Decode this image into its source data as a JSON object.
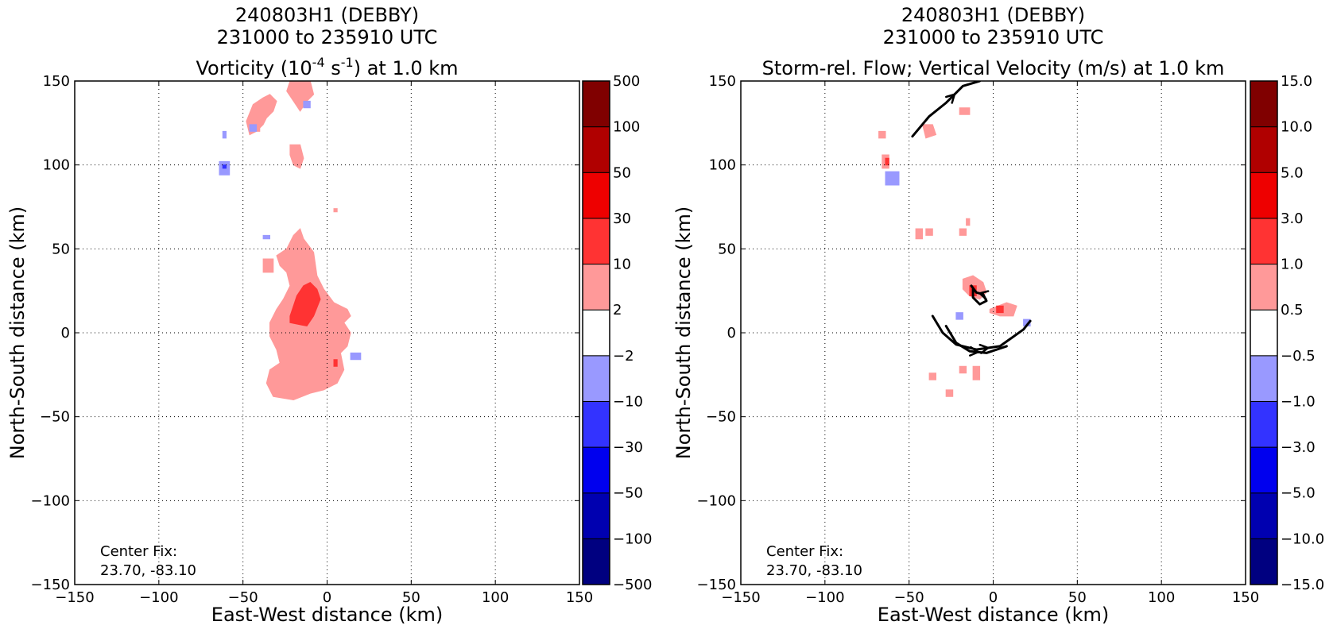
{
  "chart_data": [
    {
      "type": "heatmap",
      "title_lines": [
        "240803H1 (DEBBY)",
        "231000 to 235910 UTC"
      ],
      "title_variable": {
        "pre": "Vorticity (10",
        "sup1": "-4",
        "mid": " s",
        "sup2": "-1",
        "post": ") at 1.0 km"
      },
      "xlabel": "East-West distance (km)",
      "ylabel": "North-South distance (km)",
      "xlim": [
        -150,
        150
      ],
      "ylim": [
        -150,
        150
      ],
      "xticks": [
        -150,
        -100,
        -50,
        0,
        50,
        100,
        150
      ],
      "yticks": [
        -150,
        -100,
        -50,
        0,
        50,
        100,
        150
      ],
      "grid": true,
      "annotation": [
        "Center Fix:",
        "23.70, -83.10"
      ],
      "colorbar": {
        "levels": [
          "-500",
          "-100",
          "-50",
          "-30",
          "-10",
          "−2",
          "2",
          "10",
          "30",
          "50",
          "100",
          "500"
        ],
        "colors": [
          "#000080",
          "#0000b0",
          "#0000ee",
          "#3333ff",
          "#9999ff",
          "#ffffff",
          "#ff9999",
          "#ff3333",
          "#ee0000",
          "#b00000",
          "#800000"
        ]
      },
      "regions": [
        {
          "cls": 6,
          "poly": [
            [
              -32,
              -38
            ],
            [
              -20,
              -40
            ],
            [
              -10,
              -36
            ],
            [
              -2,
              -34
            ],
            [
              6,
              -30
            ],
            [
              10,
              -22
            ],
            [
              8,
              -12
            ],
            [
              12,
              -8
            ],
            [
              14,
              0
            ],
            [
              10,
              6
            ],
            [
              14,
              10
            ],
            [
              12,
              14
            ],
            [
              4,
              18
            ],
            [
              -2,
              26
            ],
            [
              -6,
              34
            ],
            [
              -8,
              48
            ],
            [
              -14,
              56
            ],
            [
              -16,
              62
            ],
            [
              -20,
              58
            ],
            [
              -24,
              50
            ],
            [
              -30,
              46
            ],
            [
              -28,
              40
            ],
            [
              -24,
              36
            ],
            [
              -22,
              28
            ],
            [
              -26,
              20
            ],
            [
              -30,
              14
            ],
            [
              -34,
              6
            ],
            [
              -34,
              -2
            ],
            [
              -30,
              -10
            ],
            [
              -28,
              -18
            ],
            [
              -34,
              -22
            ],
            [
              -36,
              -30
            ]
          ]
        },
        {
          "cls": 6,
          "poly": [
            [
              -38,
              44
            ],
            [
              -32,
              44
            ],
            [
              -32,
              36
            ],
            [
              -38,
              36
            ]
          ]
        },
        {
          "cls": 6,
          "poly": [
            [
              -48,
              126
            ],
            [
              -44,
              136
            ],
            [
              -38,
              140
            ],
            [
              -34,
              142
            ],
            [
              -30,
              138
            ],
            [
              -32,
              132
            ],
            [
              -36,
              128
            ],
            [
              -38,
              124
            ],
            [
              -42,
              120
            ],
            [
              -46,
              118
            ]
          ]
        },
        {
          "cls": 6,
          "poly": [
            [
              -22,
              150
            ],
            [
              -10,
              150
            ],
            [
              -8,
              142
            ],
            [
              -12,
              138
            ],
            [
              -16,
              132
            ],
            [
              -20,
              138
            ],
            [
              -24,
              144
            ]
          ]
        },
        {
          "cls": 6,
          "poly": [
            [
              -22,
              112
            ],
            [
              -16,
              112
            ],
            [
              -14,
              104
            ],
            [
              -16,
              98
            ],
            [
              -20,
              100
            ],
            [
              -22,
              106
            ]
          ]
        },
        {
          "cls": 6,
          "poly": [
            [
              4,
              74
            ],
            [
              6,
              74
            ],
            [
              6,
              72
            ],
            [
              4,
              72
            ]
          ]
        },
        {
          "cls": 6,
          "poly": [
            [
              -42,
              124
            ],
            [
              -40,
              124
            ],
            [
              -40,
              120
            ],
            [
              -42,
              120
            ]
          ]
        },
        {
          "cls": 7,
          "poly": [
            [
              -22,
              6
            ],
            [
              -12,
              4
            ],
            [
              -8,
              10
            ],
            [
              -4,
              20
            ],
            [
              -6,
              26
            ],
            [
              -10,
              30
            ],
            [
              -14,
              28
            ],
            [
              -18,
              22
            ],
            [
              -20,
              16
            ],
            [
              -22,
              10
            ]
          ]
        },
        {
          "cls": 7,
          "poly": [
            [
              4,
              -16
            ],
            [
              6,
              -16
            ],
            [
              6,
              -20
            ],
            [
              4,
              -20
            ]
          ]
        },
        {
          "cls": 4,
          "poly": [
            [
              -64,
              102
            ],
            [
              -58,
              102
            ],
            [
              -58,
              94
            ],
            [
              -64,
              94
            ]
          ]
        },
        {
          "cls": 4,
          "poly": [
            [
              -46,
              124
            ],
            [
              -42,
              124
            ],
            [
              -42,
              120
            ],
            [
              -46,
              120
            ]
          ]
        },
        {
          "cls": 4,
          "poly": [
            [
              -38,
              58
            ],
            [
              -34,
              58
            ],
            [
              -34,
              56
            ],
            [
              -38,
              56
            ]
          ]
        },
        {
          "cls": 4,
          "poly": [
            [
              -14,
              138
            ],
            [
              -10,
              138
            ],
            [
              -10,
              134
            ],
            [
              -14,
              134
            ]
          ]
        },
        {
          "cls": 4,
          "poly": [
            [
              -62,
              120
            ],
            [
              -60,
              120
            ],
            [
              -60,
              116
            ],
            [
              -62,
              116
            ]
          ]
        },
        {
          "cls": 4,
          "poly": [
            [
              14,
              -12
            ],
            [
              20,
              -12
            ],
            [
              20,
              -16
            ],
            [
              14,
              -16
            ]
          ]
        },
        {
          "cls": 3,
          "poly": [
            [
              -62,
              100
            ],
            [
              -60,
              100
            ],
            [
              -60,
              98
            ],
            [
              -62,
              98
            ]
          ]
        }
      ]
    },
    {
      "type": "heatmap",
      "title_lines": [
        "240803H1 (DEBBY)",
        "231000 to 235910 UTC",
        "Storm-rel. Flow; Vertical Velocity (m/s) at 1.0 km"
      ],
      "xlabel": "East-West distance (km)",
      "ylabel": "North-South distance (km)",
      "xlim": [
        -150,
        150
      ],
      "ylim": [
        -150,
        150
      ],
      "xticks": [
        -150,
        -100,
        -50,
        0,
        50,
        100,
        150
      ],
      "yticks": [
        -150,
        -100,
        -50,
        0,
        50,
        100,
        150
      ],
      "grid": true,
      "annotation": [
        "Center Fix:",
        "23.70, -83.10"
      ],
      "colorbar": {
        "levels": [
          "-15.0",
          "-10.0",
          "-5.0",
          "-3.0",
          "-1.0",
          "−0.5",
          "0.5",
          "1.0",
          "3.0",
          "5.0",
          "10.0",
          "15.0"
        ],
        "colors": [
          "#000080",
          "#0000b0",
          "#0000ee",
          "#3333ff",
          "#9999ff",
          "#ffffff",
          "#ff9999",
          "#ff3333",
          "#ee0000",
          "#b00000",
          "#800000"
        ]
      },
      "regions": [
        {
          "cls": 6,
          "poly": [
            [
              -42,
              124
            ],
            [
              -36,
              124
            ],
            [
              -34,
              118
            ],
            [
              -40,
              116
            ]
          ]
        },
        {
          "cls": 6,
          "poly": [
            [
              -66,
              106
            ],
            [
              -62,
              106
            ],
            [
              -62,
              98
            ],
            [
              -66,
              98
            ]
          ]
        },
        {
          "cls": 6,
          "poly": [
            [
              -68,
              120
            ],
            [
              -64,
              120
            ],
            [
              -64,
              116
            ],
            [
              -68,
              116
            ]
          ]
        },
        {
          "cls": 6,
          "poly": [
            [
              -20,
              134
            ],
            [
              -14,
              134
            ],
            [
              -14,
              130
            ],
            [
              -20,
              130
            ]
          ]
        },
        {
          "cls": 6,
          "poly": [
            [
              -46,
              62
            ],
            [
              -42,
              62
            ],
            [
              -42,
              56
            ],
            [
              -46,
              56
            ]
          ]
        },
        {
          "cls": 6,
          "poly": [
            [
              -40,
              62
            ],
            [
              -36,
              62
            ],
            [
              -36,
              58
            ],
            [
              -40,
              58
            ]
          ]
        },
        {
          "cls": 6,
          "poly": [
            [
              -18,
              32
            ],
            [
              -12,
              34
            ],
            [
              -6,
              30
            ],
            [
              -4,
              24
            ],
            [
              -8,
              20
            ],
            [
              -14,
              22
            ],
            [
              -18,
              26
            ]
          ]
        },
        {
          "cls": 6,
          "poly": [
            [
              -2,
              14
            ],
            [
              8,
              18
            ],
            [
              14,
              16
            ],
            [
              12,
              10
            ],
            [
              4,
              10
            ],
            [
              -2,
              12
            ]
          ]
        },
        {
          "cls": 6,
          "poly": [
            [
              -12,
              -20
            ],
            [
              -8,
              -20
            ],
            [
              -8,
              -28
            ],
            [
              -12,
              -28
            ]
          ]
        },
        {
          "cls": 6,
          "poly": [
            [
              -20,
              -20
            ],
            [
              -16,
              -20
            ],
            [
              -16,
              -24
            ],
            [
              -20,
              -24
            ]
          ]
        },
        {
          "cls": 6,
          "poly": [
            [
              -28,
              -34
            ],
            [
              -24,
              -34
            ],
            [
              -24,
              -38
            ],
            [
              -28,
              -38
            ]
          ]
        },
        {
          "cls": 6,
          "poly": [
            [
              -38,
              -24
            ],
            [
              -34,
              -24
            ],
            [
              -34,
              -28
            ],
            [
              -38,
              -28
            ]
          ]
        },
        {
          "cls": 6,
          "poly": [
            [
              -20,
              62
            ],
            [
              -16,
              62
            ],
            [
              -16,
              58
            ],
            [
              -20,
              58
            ]
          ]
        },
        {
          "cls": 6,
          "poly": [
            [
              -16,
              68
            ],
            [
              -14,
              68
            ],
            [
              -14,
              64
            ],
            [
              -16,
              64
            ]
          ]
        },
        {
          "cls": 7,
          "poly": [
            [
              -64,
              104
            ],
            [
              -62,
              104
            ],
            [
              -62,
              100
            ],
            [
              -64,
              100
            ]
          ]
        },
        {
          "cls": 7,
          "poly": [
            [
              -14,
              28
            ],
            [
              -10,
              28
            ],
            [
              -10,
              22
            ],
            [
              -14,
              22
            ]
          ]
        },
        {
          "cls": 7,
          "poly": [
            [
              2,
              16
            ],
            [
              6,
              16
            ],
            [
              6,
              12
            ],
            [
              2,
              12
            ]
          ]
        },
        {
          "cls": 4,
          "poly": [
            [
              -64,
              96
            ],
            [
              -56,
              96
            ],
            [
              -56,
              88
            ],
            [
              -64,
              88
            ]
          ]
        },
        {
          "cls": 4,
          "poly": [
            [
              -22,
              12
            ],
            [
              -18,
              12
            ],
            [
              -18,
              8
            ],
            [
              -22,
              8
            ]
          ]
        },
        {
          "cls": 4,
          "poly": [
            [
              18,
              8
            ],
            [
              22,
              8
            ],
            [
              22,
              4
            ],
            [
              18,
              4
            ]
          ]
        }
      ],
      "streamlines": [
        {
          "points": [
            [
              -48,
              117
            ],
            [
              -38,
              129
            ],
            [
              -28,
              137
            ],
            [
              -18,
              147
            ],
            [
              -8,
              150
            ]
          ],
          "arrow_at": 2
        },
        {
          "points": [
            [
              -12,
              26
            ],
            [
              -12,
              21
            ],
            [
              -8,
              17
            ],
            [
              -4,
              19
            ],
            [
              -6,
              23
            ],
            [
              -10,
              24
            ],
            [
              -13,
              28
            ]
          ],
          "arrow_at": 4
        },
        {
          "points": [
            [
              -36,
              10
            ],
            [
              -30,
              0
            ],
            [
              -22,
              -7
            ],
            [
              -10,
              -10
            ],
            [
              4,
              -8
            ],
            [
              18,
              2
            ],
            [
              22,
              7
            ]
          ],
          "arrow_at": 3
        },
        {
          "points": [
            [
              -28,
              4
            ],
            [
              -22,
              -6
            ],
            [
              -14,
              -11
            ],
            [
              -4,
              -12
            ],
            [
              8,
              -8
            ]
          ],
          "arrow_at": 2
        }
      ]
    }
  ]
}
